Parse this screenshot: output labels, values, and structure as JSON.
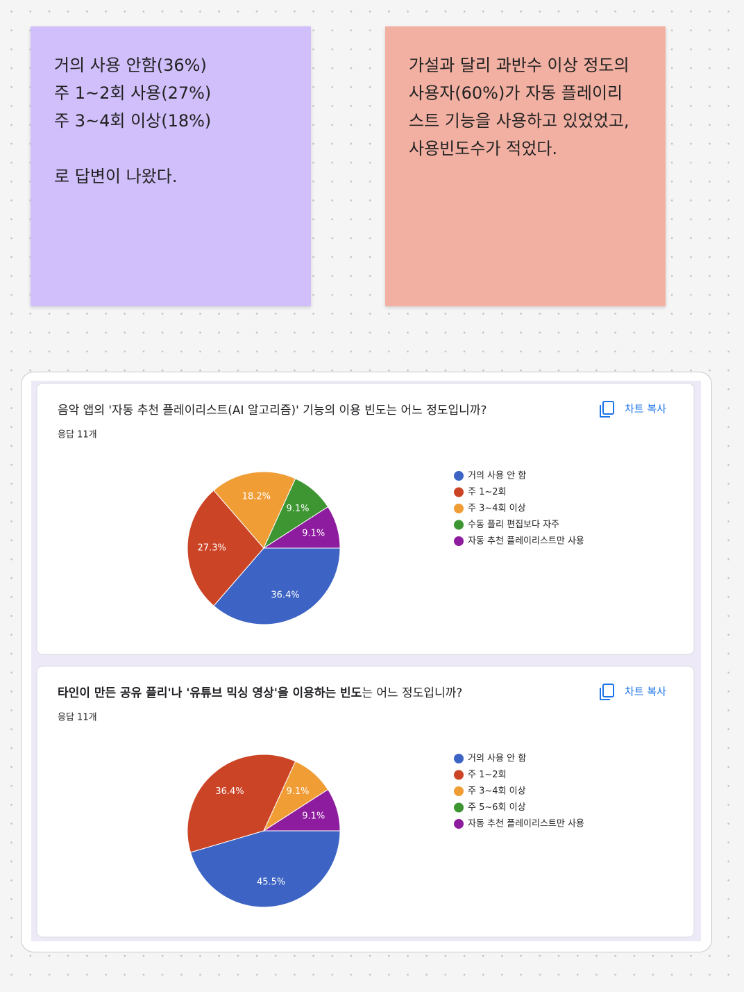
{
  "notes": [
    {
      "lines": [
        "거의 사용 안함(36%)",
        "주 1~2회 사용(27%)",
        "주 3~4회 이상(18%)",
        "로 답변이 나왔다."
      ]
    },
    {
      "text": "가설과 달리 과반수 이상 정도의 사용자(60%)가 자동 플레이리스트 기능을 사용하고 있었었고, 사용빈도수가 적었다."
    }
  ],
  "chart_data": [
    {
      "type": "pie",
      "title": "음악 앱의 '자동 추천 플레이리스트(AI 알고리즘)' 기능의 이용 빈도는 어느 정도입니까?",
      "responses": "응답 11개",
      "copy_button": "차트 복사",
      "categories": [
        "거의 사용 안 함",
        "주 1~2회",
        "주 3~4회 이상",
        "수동 플리 편집보다 자주",
        "자동 추천 플레이리스트만 사용"
      ],
      "values": [
        36.4,
        27.3,
        18.2,
        9.1,
        9.1
      ],
      "value_labels": [
        "36.4%",
        "27.3%",
        "18.2%",
        "9.1%",
        "9.1%"
      ],
      "colors": [
        "#3d64c4",
        "#cc4426",
        "#f09d36",
        "#3d9632",
        "#8e1c9e"
      ]
    },
    {
      "type": "pie",
      "title": [
        "타인이 만든 공유 플리'나 '유튜브 믹싱 영상'을 이용하는 빈도",
        "는 어느 정도입니까?"
      ],
      "responses": "응답 11개",
      "copy_button": "차트 복사",
      "categories": [
        "거의 사용 안 함",
        "주 1~2회",
        "주 3~4회 이상",
        "주 5~6회 이상",
        "자동 추천 플레이리스트만 사용"
      ],
      "values": [
        45.5,
        36.4,
        9.1,
        0,
        9.1
      ],
      "value_labels": [
        "45.5%",
        "36.4%",
        "9.1%",
        null,
        "9.1%"
      ],
      "colors": [
        "#3d64c4",
        "#cc4426",
        "#f09d36",
        "#3d9632",
        "#8e1c9e"
      ]
    }
  ]
}
